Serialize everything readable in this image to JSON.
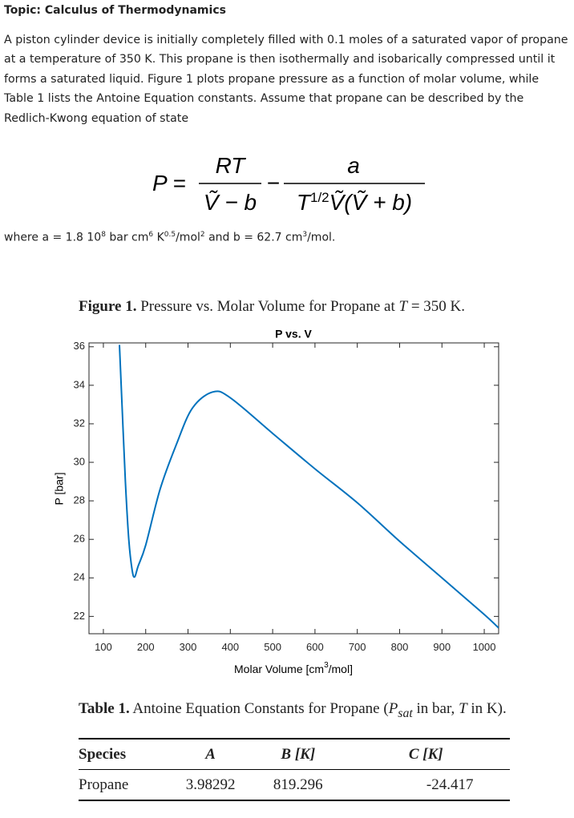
{
  "topic": "Topic: Calculus of Thermodynamics",
  "paragraph": "A piston cylinder device is initially completely filled with 0.1 moles of a saturated vapor of propane at a temperature of 350 K. This propane is then isothermally and isobarically compressed until it forms a saturated liquid. Figure 1 plots propane pressure as a function of molar volume, while Table 1 lists the Antoine Equation constants. Assume that propane can be described by the Redlich-Kwong equation of state",
  "equation": {
    "lhs": "P =",
    "num1": "RT",
    "den1": "Ṽ − b",
    "minus": "−",
    "num2": "a",
    "den2": [
      "T",
      "1/2",
      "Ṽ(Ṽ + b)"
    ]
  },
  "constants": [
    "where a =  1.8  10",
    "8",
    " bar cm",
    "6",
    " K",
    "0.5",
    "/mol",
    "2",
    " and b = 62.7 cm",
    "3",
    "/mol."
  ],
  "figure_caption": [
    "Figure 1.",
    " Pressure vs. Molar Volume for Propane at ",
    "T",
    " = 350 K."
  ],
  "chart_data": {
    "type": "line",
    "title": "P vs. V",
    "x_label": [
      "Molar Volume [cm",
      "3",
      "/mol]"
    ],
    "y_label": "P [bar]",
    "x": [
      138,
      145,
      152,
      160,
      168,
      174,
      182,
      200,
      234,
      272,
      310,
      358,
      400,
      500,
      600,
      700,
      800,
      900,
      1000,
      1034
    ],
    "series": [
      {
        "color": "#0072bd",
        "values": [
          36.1,
          32.5,
          29.0,
          26.0,
          24.4,
          24.05,
          24.6,
          25.7,
          28.6,
          30.9,
          32.8,
          33.65,
          33.35,
          31.5,
          29.66,
          27.9,
          25.9,
          24.0,
          22.1,
          21.4
        ]
      }
    ],
    "xlim": [
      66,
      1034
    ],
    "ylim": [
      21.1,
      36.2
    ],
    "xticks": [
      100,
      200,
      300,
      400,
      500,
      600,
      700,
      800,
      900,
      1000
    ],
    "yticks": [
      22,
      24,
      26,
      28,
      30,
      32,
      34,
      36
    ],
    "grid": false
  },
  "table": {
    "caption": [
      "Table 1.",
      " Antoine Equation Constants for Propane (",
      "P",
      "sat",
      " in bar, ",
      "T",
      " in K)."
    ],
    "header": [
      "Species",
      "A",
      "B [K]",
      "C [K]"
    ],
    "rows": [
      [
        "Propane",
        "3.98292",
        "819.296",
        "-24.417"
      ]
    ]
  }
}
